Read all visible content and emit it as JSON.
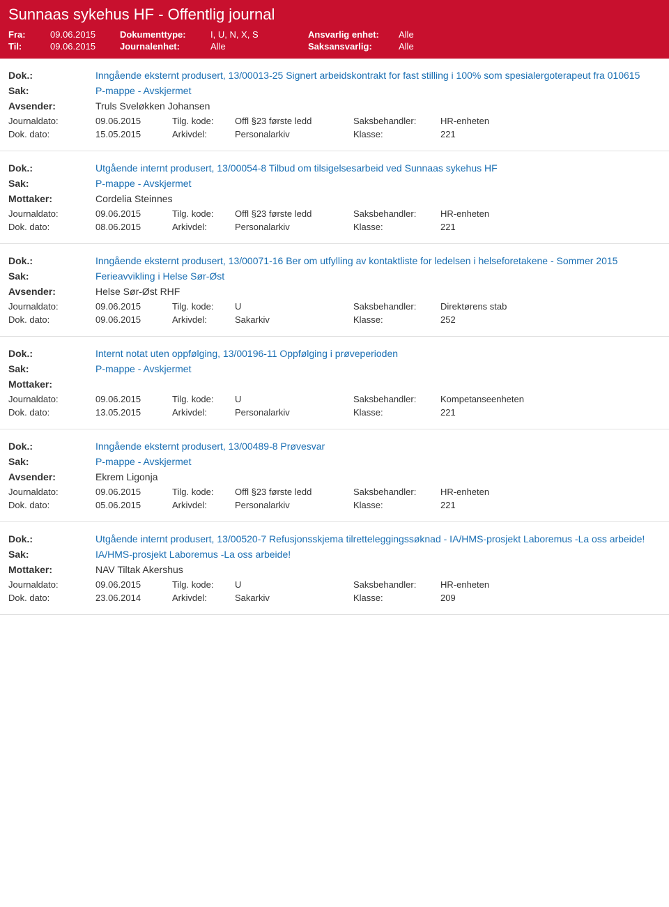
{
  "colors": {
    "header_bg": "#c8102e",
    "header_text": "#ffffff",
    "body_text": "#333333",
    "link_blue": "#1a6fb3",
    "divider": "#e0e0e0"
  },
  "header": {
    "title": "Sunnaas sykehus HF - Offentlig journal",
    "fra_label": "Fra:",
    "fra_value": "09.06.2015",
    "til_label": "Til:",
    "til_value": "09.06.2015",
    "dokumenttype_label": "Dokumenttype:",
    "dokumenttype_value": "I, U, N, X, S",
    "journalenhet_label": "Journalenhet:",
    "journalenhet_value": "Alle",
    "ansvarlig_label": "Ansvarlig enhet:",
    "ansvarlig_value": "Alle",
    "saksansvarlig_label": "Saksansvarlig:",
    "saksansvarlig_value": "Alle"
  },
  "labels": {
    "dok": "Dok.:",
    "sak": "Sak:",
    "avsender": "Avsender:",
    "mottaker": "Mottaker:",
    "journaldato": "Journaldato:",
    "dokdato": "Dok. dato:",
    "tilgkode": "Tilg. kode:",
    "arkivdel": "Arkivdel:",
    "saksbehandler": "Saksbehandler:",
    "klasse": "Klasse:"
  },
  "entries": [
    {
      "dok": "Inngående eksternt produsert, 13/00013-25 Signert arbeidskontrakt for fast stilling i 100% som spesialergoterapeut fra 010615",
      "sak": "P-mappe - Avskjermet",
      "party_label": "Avsender:",
      "party_value": "Truls Sveløkken Johansen",
      "journaldato": "09.06.2015",
      "tilgkode": "Offl §23 første ledd",
      "saksbehandler": "HR-enheten",
      "dokdato": "15.05.2015",
      "arkivdel": "Personalarkiv",
      "klasse": "221"
    },
    {
      "dok": "Utgående internt produsert, 13/00054-8 Tilbud om tilsigelsesarbeid ved Sunnaas sykehus HF",
      "sak": "P-mappe - Avskjermet",
      "party_label": "Mottaker:",
      "party_value": "Cordelia Steinnes",
      "journaldato": "09.06.2015",
      "tilgkode": "Offl §23 første ledd",
      "saksbehandler": "HR-enheten",
      "dokdato": "08.06.2015",
      "arkivdel": "Personalarkiv",
      "klasse": "221"
    },
    {
      "dok": "Inngående eksternt produsert, 13/00071-16 Ber om utfylling av kontaktliste for ledelsen i helseforetakene - Sommer 2015",
      "sak": "Ferieavvikling i Helse Sør-Øst",
      "party_label": "Avsender:",
      "party_value": "Helse Sør-Øst RHF",
      "journaldato": "09.06.2015",
      "tilgkode": "U",
      "saksbehandler": "Direktørens stab",
      "dokdato": "09.06.2015",
      "arkivdel": "Sakarkiv",
      "klasse": "252"
    },
    {
      "dok": "Internt notat uten oppfølging, 13/00196-11 Oppfølging i prøveperioden",
      "sak": "P-mappe - Avskjermet",
      "party_label": "Mottaker:",
      "party_value": "",
      "journaldato": "09.06.2015",
      "tilgkode": "U",
      "saksbehandler": "Kompetanseenheten",
      "dokdato": "13.05.2015",
      "arkivdel": "Personalarkiv",
      "klasse": "221"
    },
    {
      "dok": "Inngående eksternt produsert, 13/00489-8 Prøvesvar",
      "sak": "P-mappe - Avskjermet",
      "party_label": "Avsender:",
      "party_value": "Ekrem Ligonja",
      "journaldato": "09.06.2015",
      "tilgkode": "Offl §23 første ledd",
      "saksbehandler": "HR-enheten",
      "dokdato": "05.06.2015",
      "arkivdel": "Personalarkiv",
      "klasse": "221"
    },
    {
      "dok": "Utgående internt produsert, 13/00520-7 Refusjonsskjema tilretteleggingssøknad - IA/HMS-prosjekt Laboremus -La oss arbeide!",
      "sak": "IA/HMS-prosjekt Laboremus -La oss arbeide!",
      "party_label": "Mottaker:",
      "party_value": "NAV Tiltak Akershus",
      "journaldato": "09.06.2015",
      "tilgkode": "U",
      "saksbehandler": "HR-enheten",
      "dokdato": "23.06.2014",
      "arkivdel": "Sakarkiv",
      "klasse": "209"
    }
  ]
}
